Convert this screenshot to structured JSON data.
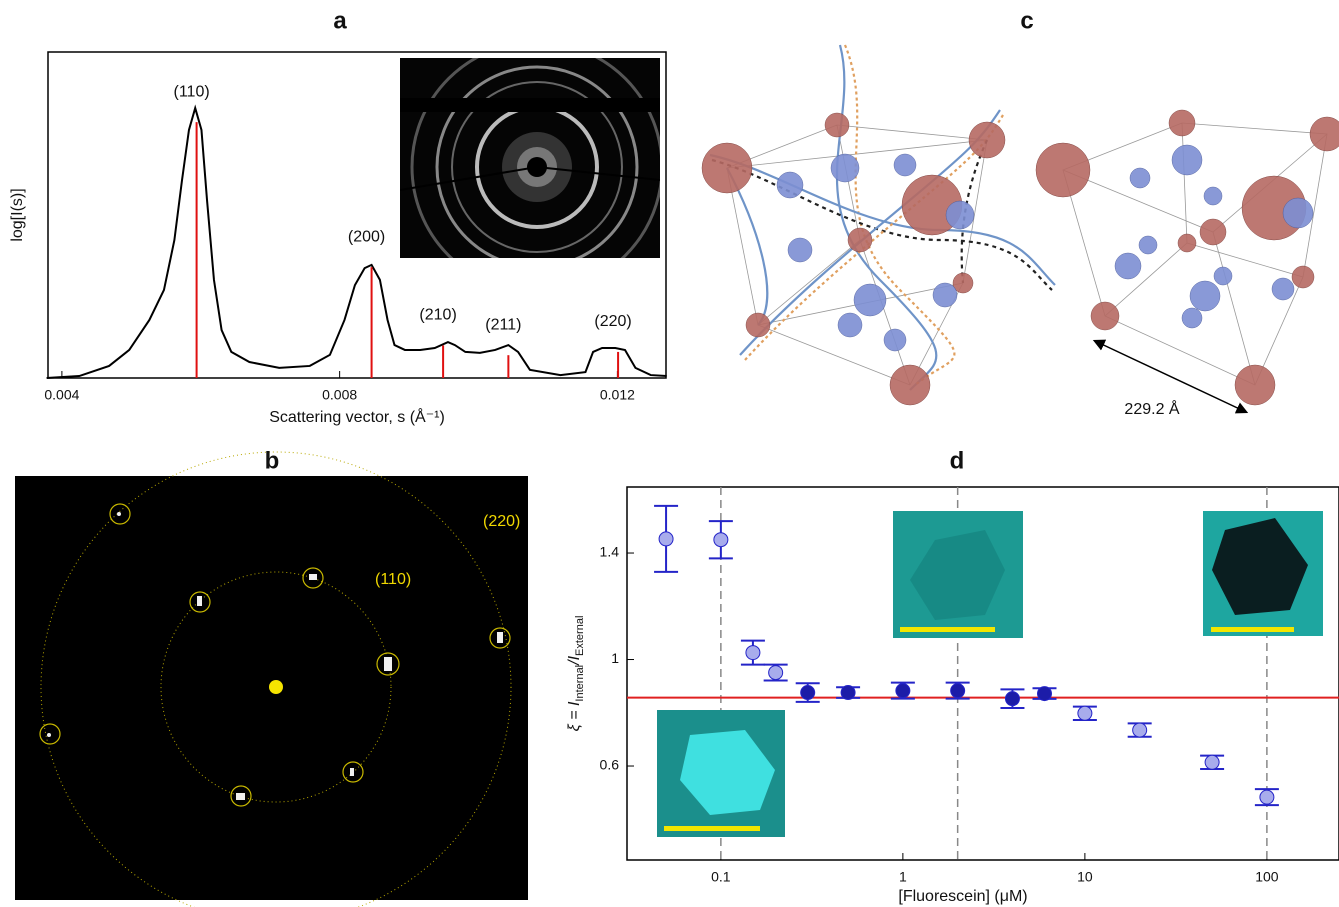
{
  "chart_data": [
    {
      "type": "line",
      "title": "a",
      "xlabel": "Scattering vector, s (Å⁻¹)",
      "ylabel": "log[I(s)]",
      "xlim": [
        0.0038,
        0.0127
      ],
      "ylim": [
        0,
        1
      ],
      "xticks": [
        0.004,
        0.008,
        0.012
      ],
      "x": [
        0.00378,
        0.00425,
        0.00468,
        0.00497,
        0.00526,
        0.00547,
        0.00562,
        0.00573,
        0.00583,
        0.00592,
        0.00601,
        0.00609,
        0.00619,
        0.0063,
        0.00644,
        0.0067,
        0.00713,
        0.00757,
        0.00786,
        0.00807,
        0.00822,
        0.00836,
        0.00846,
        0.00858,
        0.00869,
        0.00879,
        0.00894,
        0.00916,
        0.00937,
        0.00956,
        0.00966,
        0.00981,
        0.01002,
        0.01024,
        0.01043,
        0.01057,
        0.01074,
        0.01118,
        0.01154,
        0.01165,
        0.01178,
        0.01197,
        0.01211,
        0.01226,
        0.01248,
        0.01271
      ],
      "series": [
        {
          "color": "#000000",
          "values": [
            0,
            0.006,
            0.037,
            0.086,
            0.178,
            0.27,
            0.423,
            0.607,
            0.761,
            0.828,
            0.761,
            0.546,
            0.301,
            0.147,
            0.08,
            0.049,
            0.031,
            0.037,
            0.071,
            0.178,
            0.285,
            0.337,
            0.347,
            0.301,
            0.178,
            0.101,
            0.086,
            0.086,
            0.092,
            0.11,
            0.101,
            0.08,
            0.077,
            0.086,
            0.101,
            0.08,
            0.025,
            0.009,
            0.018,
            0.08,
            0.092,
            0.092,
            0.086,
            0.031,
            0.009,
            0.006
          ]
        }
      ],
      "peaks": {
        "color": "#e01010",
        "x": [
          0.00594,
          0.00846,
          0.00949,
          0.01043,
          0.01201
        ],
        "values": [
          0.785,
          0.34,
          0.1,
          0.07,
          0.08
        ],
        "labels": [
          "(110)",
          "(200)",
          "(210)",
          "(211)",
          "(220)"
        ]
      }
    },
    {
      "type": "scatter",
      "title": "d",
      "xlabel": "[Fluorescein] (μM)",
      "ylabel": [
        "ξ = I",
        "Internal",
        "/I",
        "External"
      ],
      "log_x": true,
      "xlim": [
        0.0305,
        249
      ],
      "ylim": [
        0.247,
        1.648
      ],
      "xticks": [
        0.1,
        1,
        10,
        100
      ],
      "yticks": [
        0.6,
        1,
        1.4
      ],
      "error_color": "#2424c8",
      "vlines": [
        0.1,
        2,
        100
      ],
      "hline": {
        "value": 0.857,
        "color": "#e02020"
      },
      "series": [
        {
          "color": "#a8acec",
          "x": [
            0.05,
            0.1,
            0.15,
            0.2,
            10,
            20,
            50,
            100
          ],
          "values": [
            1.453,
            1.45,
            1.026,
            0.951,
            0.798,
            0.735,
            0.614,
            0.483
          ],
          "errors": [
            0.124,
            0.07,
            0.045,
            0.03,
            0.025,
            0.025,
            0.025,
            0.03
          ]
        },
        {
          "color": "#1c1ca8",
          "x": [
            0.3,
            0.5,
            1,
            2,
            4,
            6
          ],
          "values": [
            0.876,
            0.876,
            0.883,
            0.883,
            0.853,
            0.872
          ],
          "errors": [
            0.035,
            0.02,
            0.03,
            0.03,
            0.035,
            0.02
          ]
        }
      ]
    }
  ],
  "panels": {
    "b": {
      "title": "b",
      "ring_labels": [
        "(220)",
        "(110)"
      ]
    },
    "c": {
      "title": "c",
      "scale_label": "229.2 Å"
    }
  }
}
